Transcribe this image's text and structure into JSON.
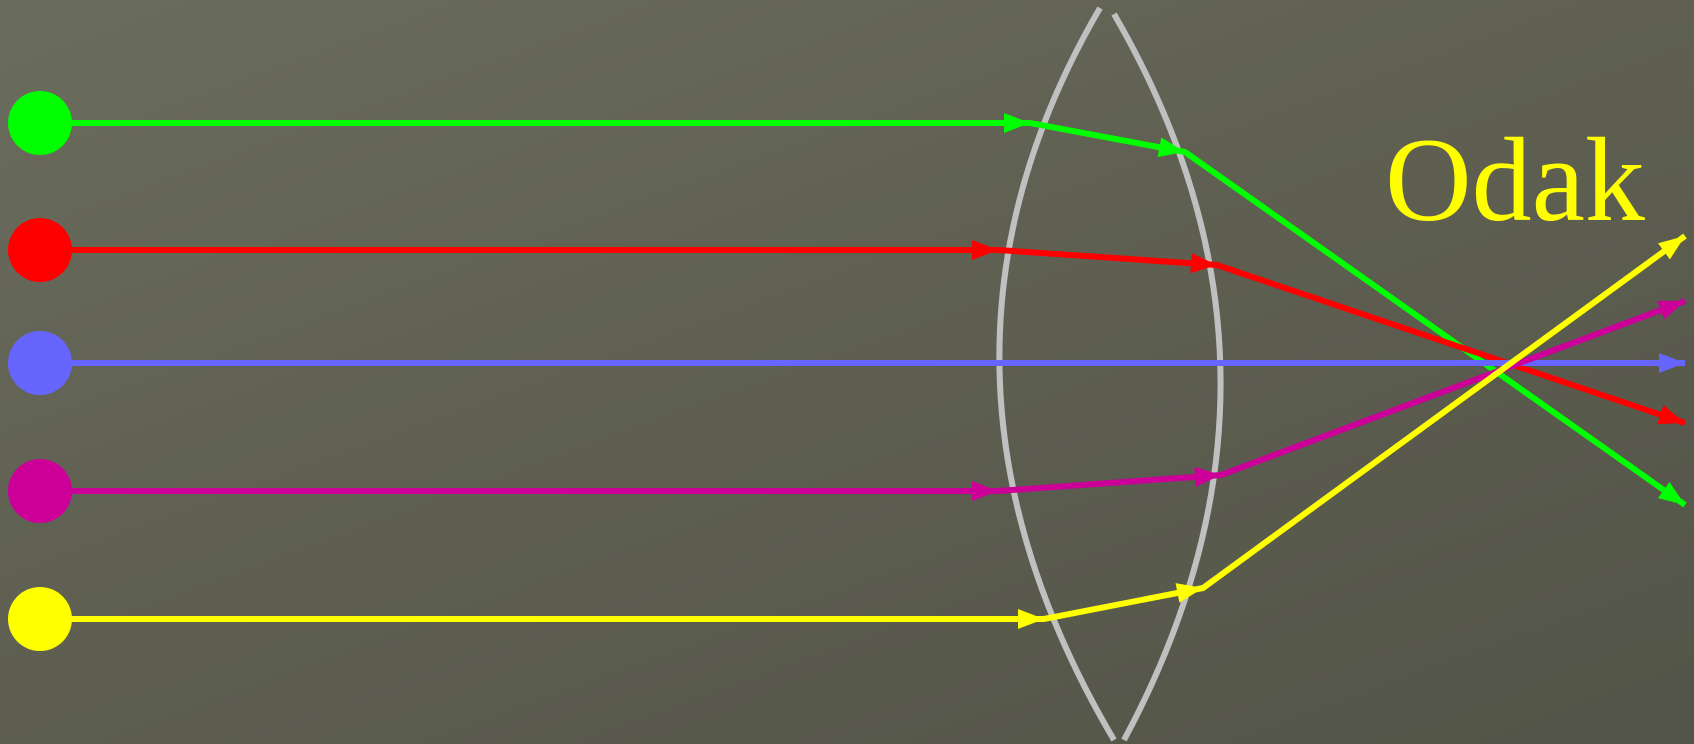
{
  "diagram": {
    "label": "Odak",
    "label_color": "#ffff00",
    "lens_color": "#c0c0c0",
    "rays": [
      {
        "id": "green",
        "color": "#00ff00"
      },
      {
        "id": "red",
        "color": "#ff0000"
      },
      {
        "id": "blue",
        "color": "#6666ff"
      },
      {
        "id": "magenta",
        "color": "#cc0099"
      },
      {
        "id": "yellow",
        "color": "#ffff00"
      }
    ]
  }
}
